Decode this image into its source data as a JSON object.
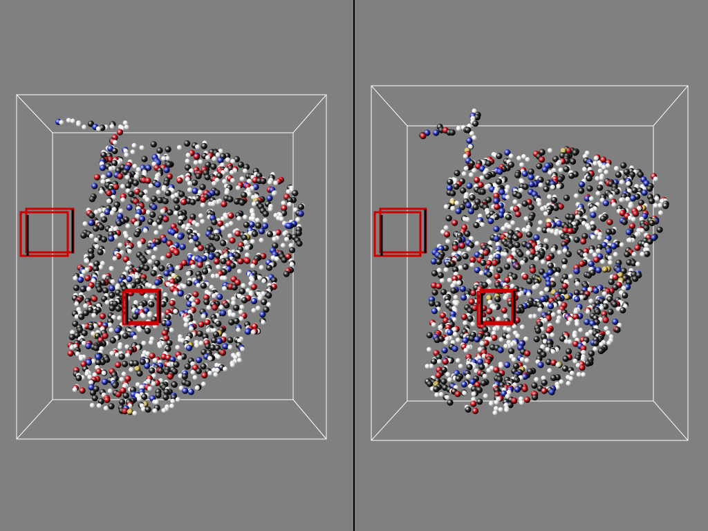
{
  "viewer": {
    "background": "#808080",
    "divider_color": "#000000",
    "box_color": "#ffffff",
    "highlight_color": "#cc0000"
  },
  "atom_colors": {
    "carbon": "#2a2a2a",
    "hydrogen": "#f2f2f2",
    "oxygen": "#e0141e",
    "nitrogen": "#2a3cd8",
    "sulfur": "#e6c84a"
  },
  "atom_mix": {
    "carbon": 0.34,
    "hydrogen": 0.42,
    "oxygen": 0.13,
    "nitrogen": 0.1,
    "sulfur": 0.01
  },
  "panes": [
    {
      "name": "left-view",
      "highlight_boxes": 2
    },
    {
      "name": "right-view",
      "highlight_boxes": 2
    }
  ]
}
